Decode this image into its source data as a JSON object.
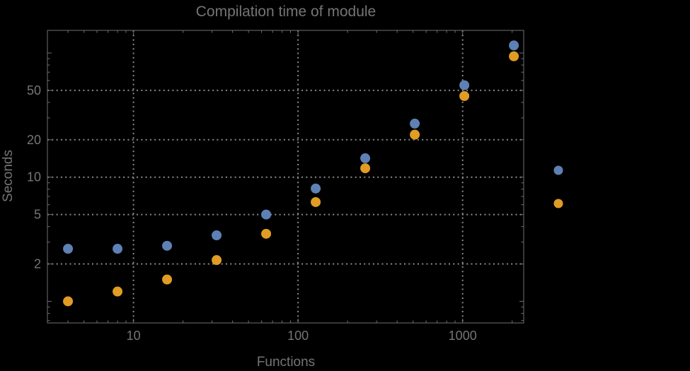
{
  "chart_data": {
    "type": "scatter",
    "title": "Compilation time of module",
    "xlabel": "Functions",
    "ylabel": "Seconds",
    "x_scale": "log",
    "y_scale": "log",
    "xlim": [
      3,
      2350
    ],
    "ylim": [
      0.67,
      152
    ],
    "x_ticks": {
      "values": [
        10,
        100,
        1000
      ],
      "labels": [
        "10",
        "100",
        "1000"
      ]
    },
    "y_ticks": {
      "values": [
        2,
        5,
        10,
        20,
        50
      ],
      "labels": [
        "2",
        "5",
        "10",
        "20",
        "50"
      ]
    },
    "grid": {
      "style": "dotted",
      "color": "#8C8C8C",
      "on": "labeled-ticks"
    },
    "colors": {
      "background": "#000000",
      "text": "#757575",
      "frame": "#6F6F6F",
      "series_blue": "#5E81B5",
      "series_orange": "#E09C24"
    },
    "series": [
      {
        "name": "blue",
        "color": "#5E81B5",
        "marker": "circle",
        "x": [
          4,
          8,
          16,
          32,
          64,
          128,
          256,
          512,
          1024,
          2048
        ],
        "y": [
          2.65,
          2.65,
          2.8,
          3.4,
          5.0,
          8.1,
          14.2,
          27,
          55,
          115
        ]
      },
      {
        "name": "orange",
        "color": "#E09C24",
        "marker": "circle",
        "x": [
          4,
          8,
          16,
          32,
          64,
          128,
          256,
          512,
          1024,
          2048
        ],
        "y": [
          1.0,
          1.2,
          1.5,
          2.15,
          3.5,
          6.3,
          11.8,
          22,
          45,
          94
        ]
      }
    ],
    "legend": {
      "position": "outside-right",
      "labels_visible": false,
      "entries": [
        {
          "color": "#5E81B5"
        },
        {
          "color": "#E09C24"
        }
      ]
    }
  }
}
